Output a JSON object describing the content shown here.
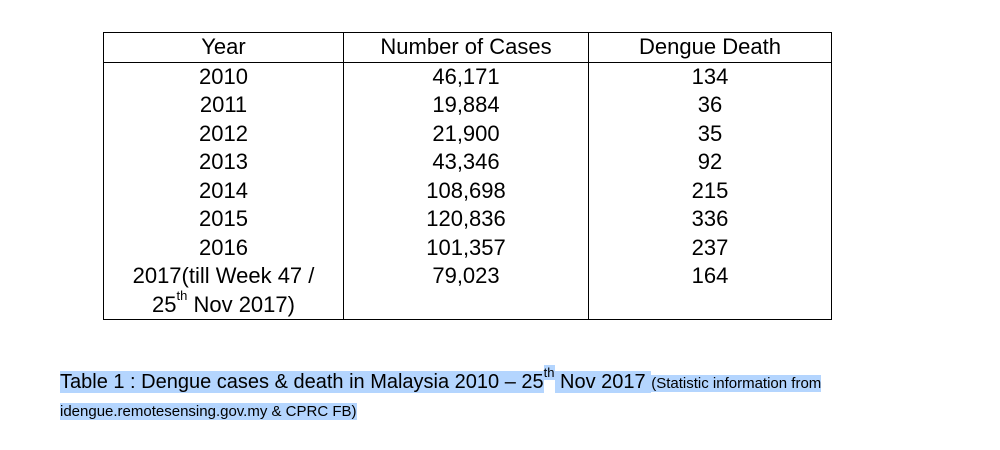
{
  "table": {
    "headers": [
      "Year",
      "Number of Cases",
      "Dengue Death"
    ],
    "rows": [
      [
        "2010",
        "46,171",
        "134"
      ],
      [
        "2011",
        "19,884",
        "36"
      ],
      [
        "2012",
        "21,900",
        "35"
      ],
      [
        "2013",
        "43,346",
        "92"
      ],
      [
        "2014",
        "108,698",
        "215"
      ],
      [
        "2015",
        "120,836",
        "336"
      ],
      [
        "2016",
        "101,357",
        "237"
      ],
      [
        "2017(till Week 47 / 25th Nov 2017)",
        "79,023",
        "164"
      ]
    ],
    "last_year_parts": {
      "line1": "2017(till Week 47 /",
      "day": "25",
      "suffix": "th",
      "rest": " Nov 2017)"
    }
  },
  "caption": {
    "main_prefix": "Table 1 : Dengue cases & death in Malaysia 2010 – 25",
    "main_suffix": "th",
    "main_rest": " Nov 2017 ",
    "source_line1": "(Statistic information from",
    "source_line2": "idengue.remotesensing.gov.my & CPRC FB)",
    "highlight_color": "#b4d5fe"
  }
}
